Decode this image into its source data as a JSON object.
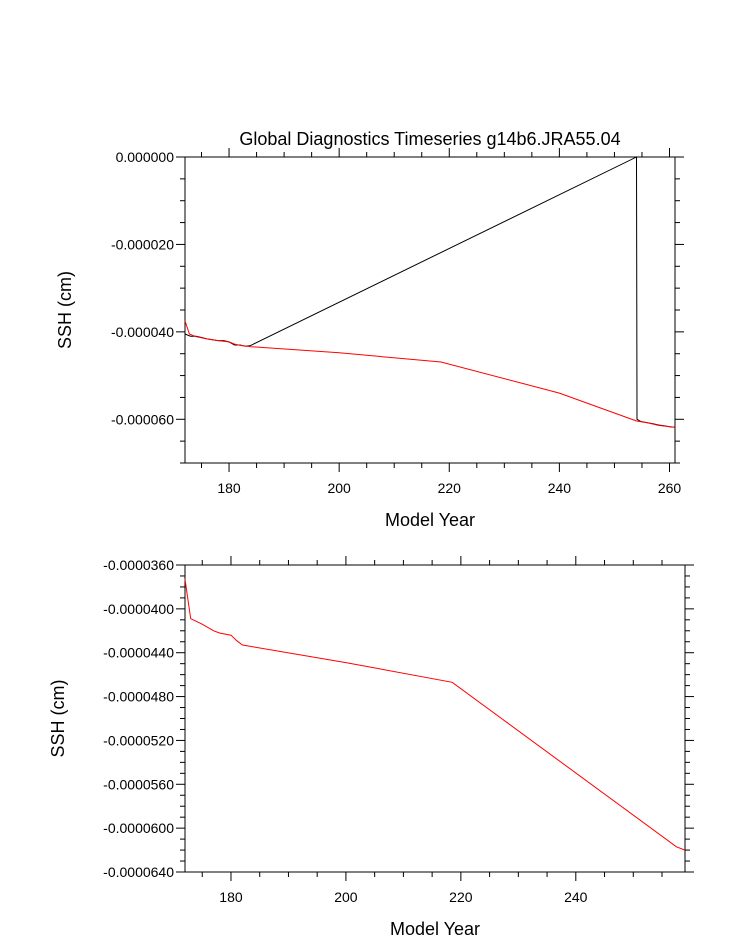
{
  "chart_data": [
    {
      "type": "line",
      "title": "Global Diagnostics Timeseries g14b6.JRA55.04",
      "xlabel": "Model Year",
      "ylabel": "SSH (cm)",
      "xlim": [
        172,
        261
      ],
      "ylim": [
        -7e-05,
        0.0
      ],
      "xticks": [
        180,
        200,
        220,
        240,
        260
      ],
      "yticks": [
        0.0,
        -2e-05,
        -4e-05,
        -6e-05
      ],
      "ytick_labels": [
        "0.000000",
        "-0.000020",
        "-0.000040",
        "-0.000060"
      ],
      "grid": false,
      "series": [
        {
          "color": "#000000",
          "x": [
            172.0,
            173.0,
            174.0,
            175.0,
            176.0,
            177.0,
            178.0,
            179.0,
            180.0,
            181.0,
            182.0,
            183.0,
            183.8,
            254.0,
            254.1,
            254.8,
            256.0,
            257.0,
            258.0,
            259.0,
            260.0,
            261.0
          ],
          "y": [
            -4.05e-05,
            -4.1e-05,
            -4.1e-05,
            -4.13e-05,
            -4.16e-05,
            -4.18e-05,
            -4.2e-05,
            -4.2e-05,
            -4.23e-05,
            -4.3e-05,
            -4.3e-05,
            -4.33e-05,
            -4.32e-05,
            0.0,
            -6e-05,
            -6.05e-05,
            -6.08e-05,
            -6.1e-05,
            -6.13e-05,
            -6.15e-05,
            -6.17e-05,
            -6.18e-05
          ]
        },
        {
          "color": "#ff0000",
          "x": [
            172.0,
            172.8,
            174.0,
            176.0,
            178.0,
            180.0,
            181.0,
            182.0,
            184.0,
            200.0,
            218.5,
            240.0,
            254.0,
            256.0,
            258.0,
            261.0
          ],
          "y": [
            -3.75e-05,
            -4.05e-05,
            -4.11e-05,
            -4.16e-05,
            -4.2e-05,
            -4.23e-05,
            -4.28e-05,
            -4.31e-05,
            -4.34e-05,
            -4.48e-05,
            -4.69e-05,
            -5.4e-05,
            -6.04e-05,
            -6.08e-05,
            -6.14e-05,
            -6.18e-05
          ]
        }
      ]
    },
    {
      "type": "line",
      "title": "",
      "xlabel": "Model Year",
      "ylabel": "SSH (cm)",
      "xlim": [
        172,
        259
      ],
      "ylim": [
        -6.4e-05,
        -3.6e-05
      ],
      "xticks": [
        180,
        200,
        220,
        240
      ],
      "yticks": [
        -3.6e-05,
        -4e-05,
        -4.4e-05,
        -4.8e-05,
        -5.2e-05,
        -5.6e-05,
        -6e-05,
        -6.4e-05
      ],
      "ytick_labels": [
        "-0.0000360",
        "-0.0000400",
        "-0.0000440",
        "-0.0000480",
        "-0.0000520",
        "-0.0000560",
        "-0.0000600",
        "-0.0000640"
      ],
      "grid": false,
      "series": [
        {
          "color": "#ff0000",
          "x": [
            172.0,
            173.0,
            175.0,
            177.0,
            178.0,
            180.0,
            181.0,
            182.0,
            200.0,
            218.5,
            257.5,
            259.0
          ],
          "y": [
            -3.73e-05,
            -4.09e-05,
            -4.14e-05,
            -4.2e-05,
            -4.22e-05,
            -4.24e-05,
            -4.29e-05,
            -4.33e-05,
            -4.49e-05,
            -4.67e-05,
            -6.17e-05,
            -6.2e-05
          ]
        }
      ]
    }
  ]
}
